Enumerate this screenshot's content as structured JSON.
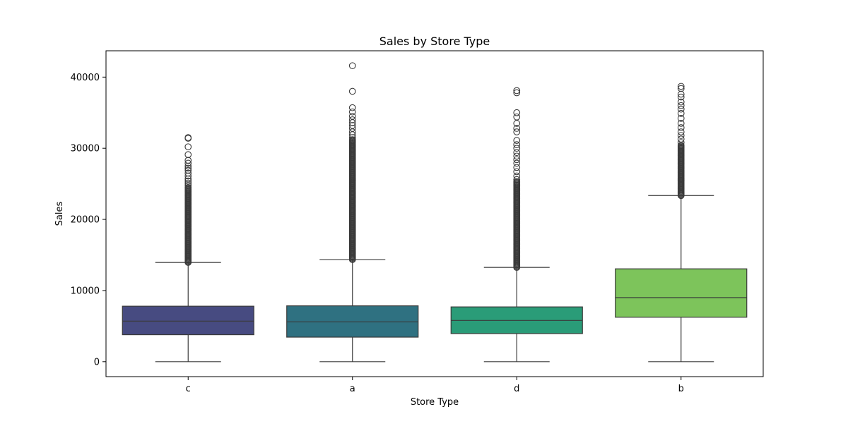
{
  "chart_data": {
    "type": "box",
    "title": "Sales by Store Type",
    "xlabel": "Store Type",
    "ylabel": "Sales",
    "ylim": [
      -2100,
      43700
    ],
    "yticks": [
      0,
      10000,
      20000,
      30000,
      40000
    ],
    "grid": false,
    "categories": [
      "c",
      "a",
      "d",
      "b"
    ],
    "boxes": [
      {
        "category": "c",
        "color": "#474b81",
        "whisker_low": 0,
        "q1": 3790,
        "median": 5700,
        "q3": 7800,
        "whisker_high": 13950,
        "outlier_band": [
          13950,
          24500
        ],
        "outliers": [
          24800,
          25100,
          25400,
          25700,
          26100,
          26500,
          26900,
          27200,
          27500,
          27900,
          28300,
          29100,
          30200,
          31400,
          31500
        ]
      },
      {
        "category": "a",
        "color": "#2f7181",
        "whisker_low": 0,
        "q1": 3450,
        "median": 5600,
        "q3": 7850,
        "whisker_high": 14350,
        "outlier_band": [
          14350,
          31200
        ],
        "outliers": [
          31500,
          31900,
          32300,
          32800,
          33200,
          33600,
          34000,
          34500,
          35100,
          35700,
          38000,
          41600
        ]
      },
      {
        "category": "d",
        "color": "#2a9c78",
        "whisker_low": 0,
        "q1": 3950,
        "median": 5800,
        "q3": 7700,
        "whisker_high": 13250,
        "outlier_band": [
          13250,
          25300
        ],
        "outliers": [
          25600,
          26100,
          26700,
          27300,
          27900,
          28400,
          28900,
          29400,
          30000,
          30500,
          31100,
          32300,
          32800,
          33500,
          34400,
          35000,
          37800,
          38100
        ]
      },
      {
        "category": "b",
        "color": "#7dc45b",
        "whisker_low": 0,
        "q1": 6250,
        "median": 9000,
        "q3": 13050,
        "whisker_high": 23350,
        "outlier_band": [
          23350,
          30400
        ],
        "outliers": [
          30800,
          31300,
          31800,
          32300,
          32900,
          33500,
          34200,
          34900,
          35500,
          36000,
          36500,
          37200,
          37600,
          38400,
          38700
        ]
      }
    ]
  }
}
